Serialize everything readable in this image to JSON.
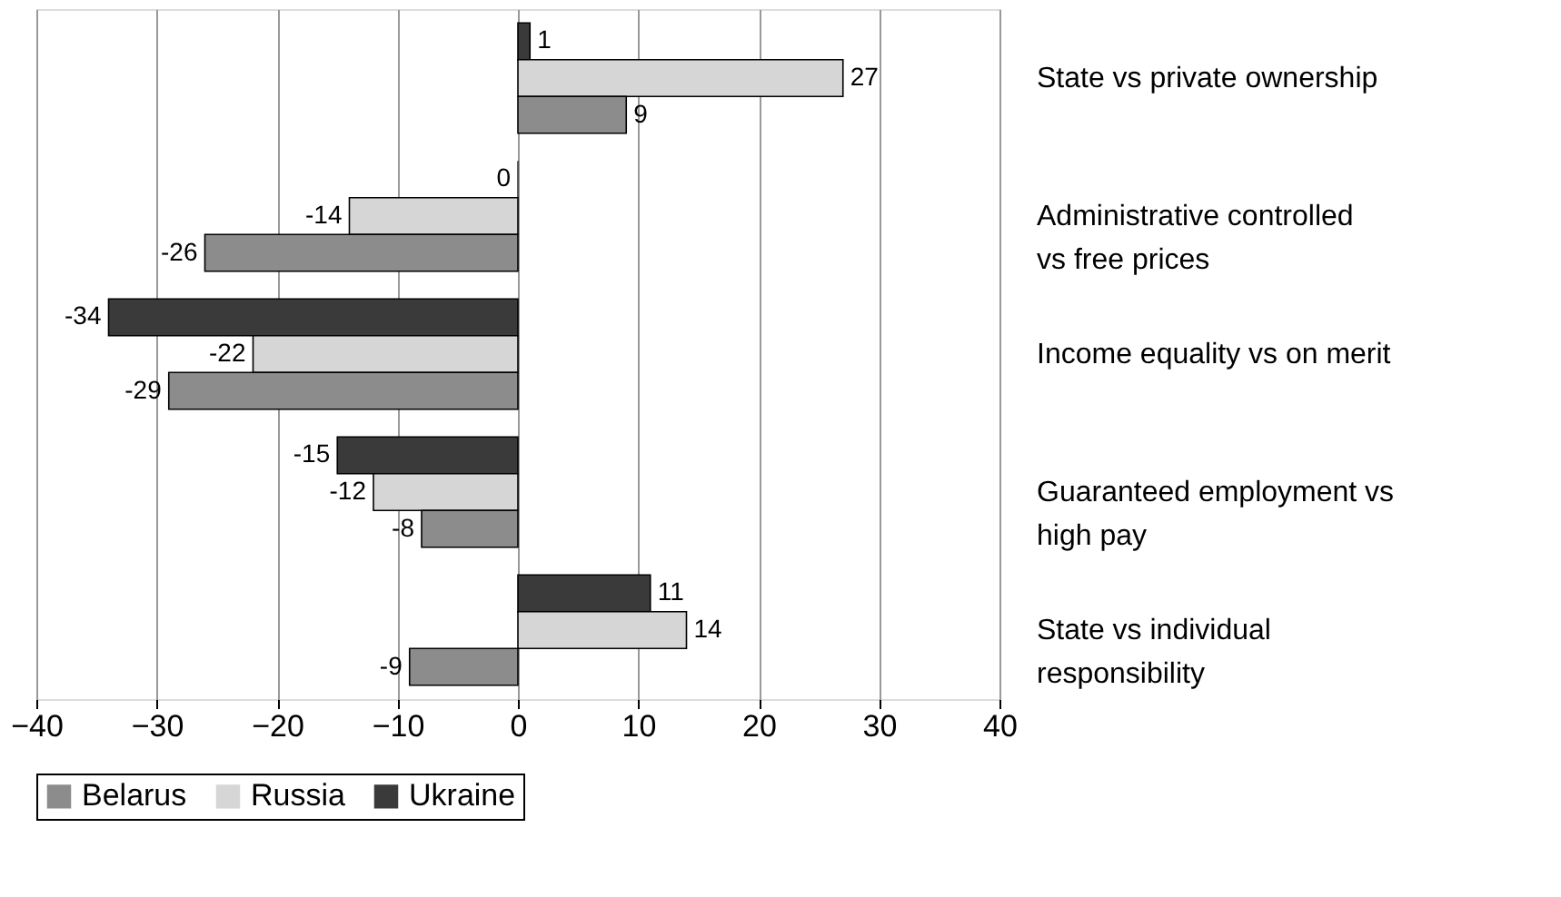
{
  "chart_data": {
    "type": "bar",
    "orientation": "horizontal",
    "categories": [
      "State vs private ownership",
      "Administrative controlled vs free prices",
      "Income equality vs on merit",
      "Guaranteed employment vs high pay",
      "State vs individual responsibility"
    ],
    "series": [
      {
        "name": "Ukraine",
        "color": "#3a3a3a",
        "values": [
          1,
          0,
          -34,
          -15,
          11
        ]
      },
      {
        "name": "Russia",
        "color": "#d6d6d6",
        "values": [
          27,
          -14,
          -22,
          -12,
          14
        ]
      },
      {
        "name": "Belarus",
        "color": "#8c8c8c",
        "values": [
          9,
          -26,
          -29,
          -8,
          -9
        ]
      }
    ],
    "xlim": [
      -40,
      40
    ],
    "xticks": [
      -40,
      -30,
      -20,
      -10,
      0,
      10,
      20,
      30,
      40
    ],
    "grid": "x",
    "legend": "bottom",
    "data_labels": true
  }
}
